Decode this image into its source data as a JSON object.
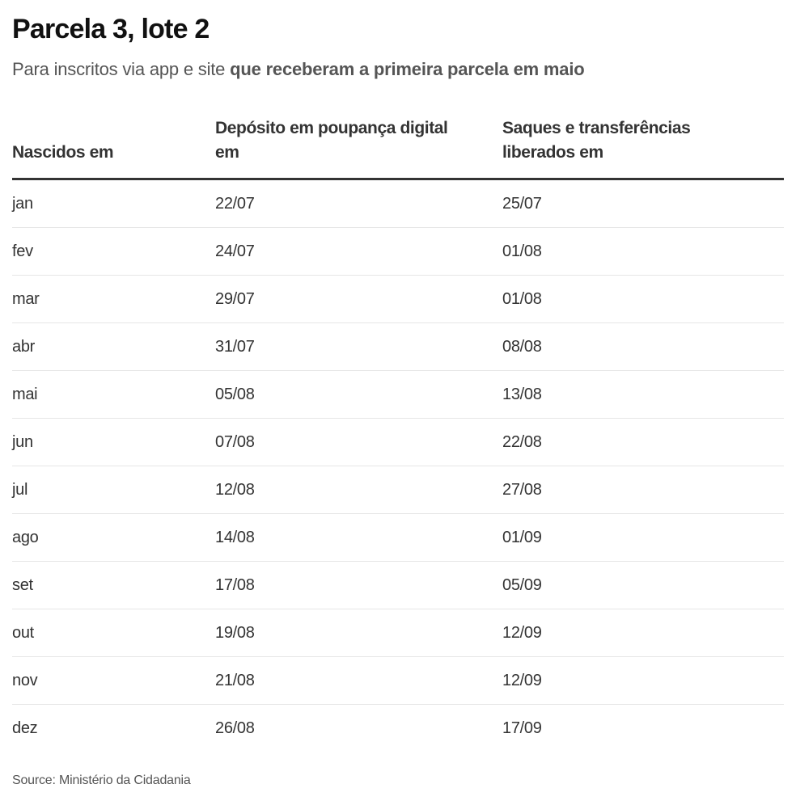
{
  "header": {
    "title": "Parcela 3, lote 2",
    "subtitle_regular": "Para inscritos via app e site ",
    "subtitle_bold": "que receberam a primeira parcela em maio"
  },
  "table": {
    "columns": [
      "Nascidos em",
      "Depósito em poupança digital em",
      "Saques e transferências liberados em"
    ],
    "rows": [
      [
        "jan",
        "22/07",
        "25/07"
      ],
      [
        "fev",
        "24/07",
        "01/08"
      ],
      [
        "mar",
        "29/07",
        "01/08"
      ],
      [
        "abr",
        "31/07",
        "08/08"
      ],
      [
        "mai",
        "05/08",
        "13/08"
      ],
      [
        "jun",
        "07/08",
        "22/08"
      ],
      [
        "jul",
        "12/08",
        "27/08"
      ],
      [
        "ago",
        "14/08",
        "01/09"
      ],
      [
        "set",
        "17/08",
        "05/09"
      ],
      [
        "out",
        "19/08",
        "12/09"
      ],
      [
        "nov",
        "21/08",
        "12/09"
      ],
      [
        "dez",
        "26/08",
        "17/09"
      ]
    ]
  },
  "footer": {
    "source": "Source: Ministério da Cidadania"
  },
  "colors": {
    "title": "#111111",
    "text": "#333333",
    "muted": "#555555",
    "header_rule": "#333333",
    "row_rule": "#e6e6e6"
  },
  "chart_data": {
    "type": "table",
    "title": "Parcela 3, lote 2",
    "subtitle": "Para inscritos via app e site que receberam a primeira parcela em maio",
    "columns": [
      "Nascidos em",
      "Depósito em poupança digital em",
      "Saques e transferências liberados em"
    ],
    "rows": [
      [
        "jan",
        "22/07",
        "25/07"
      ],
      [
        "fev",
        "24/07",
        "01/08"
      ],
      [
        "mar",
        "29/07",
        "01/08"
      ],
      [
        "abr",
        "31/07",
        "08/08"
      ],
      [
        "mai",
        "05/08",
        "13/08"
      ],
      [
        "jun",
        "07/08",
        "22/08"
      ],
      [
        "jul",
        "12/08",
        "27/08"
      ],
      [
        "ago",
        "14/08",
        "01/09"
      ],
      [
        "set",
        "17/08",
        "05/09"
      ],
      [
        "out",
        "19/08",
        "12/09"
      ],
      [
        "nov",
        "21/08",
        "12/09"
      ],
      [
        "dez",
        "26/08",
        "17/09"
      ]
    ],
    "source": "Source: Ministério da Cidadania"
  }
}
